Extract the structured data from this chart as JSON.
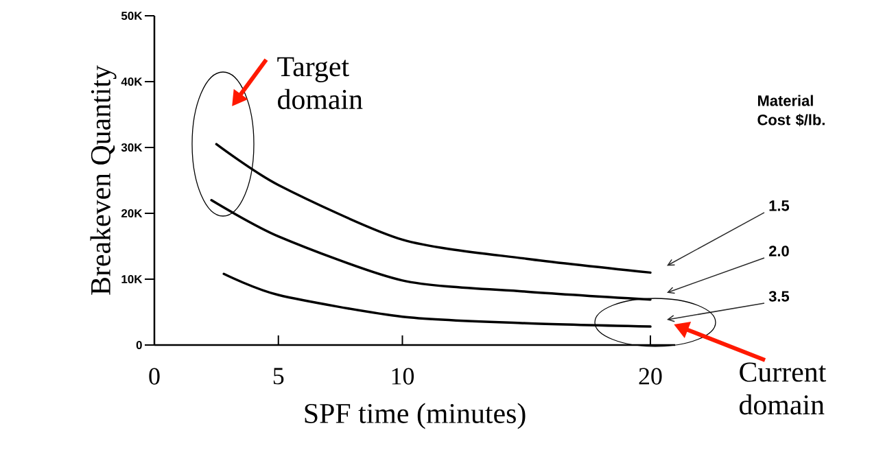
{
  "chart_data": {
    "type": "line",
    "xlabel": "SPF time (minutes)",
    "ylabel": "Breakeven Quantity",
    "legend_title": "Material Cost $/lb.",
    "xlim": [
      0,
      21
    ],
    "xticks": [
      0,
      5,
      10,
      20
    ],
    "ylim": [
      0,
      50000
    ],
    "yticks": [
      0,
      {
        "value": 10000,
        "label": "10K"
      },
      {
        "value": 20000,
        "label": "20K"
      },
      {
        "value": 30000,
        "label": "30K"
      },
      {
        "value": 40000,
        "label": "40K"
      },
      {
        "value": 50000,
        "label": "50K"
      }
    ],
    "series": [
      {
        "name": "1.5",
        "color": "#000000",
        "x": [
          2.5,
          5,
          10,
          15,
          20
        ],
        "values": [
          30500,
          24300,
          16000,
          13100,
          11000
        ]
      },
      {
        "name": "2.0",
        "color": "#000000",
        "x": [
          2.3,
          5,
          10,
          15,
          20
        ],
        "values": [
          22000,
          16500,
          9800,
          8100,
          6900
        ]
      },
      {
        "name": "3.5",
        "color": "#000000",
        "x": [
          2.8,
          5,
          10,
          15,
          20
        ],
        "values": [
          10800,
          7600,
          4300,
          3300,
          2800
        ]
      }
    ],
    "annotations": [
      "Target domain",
      "Current domain"
    ],
    "legend": "right"
  }
}
